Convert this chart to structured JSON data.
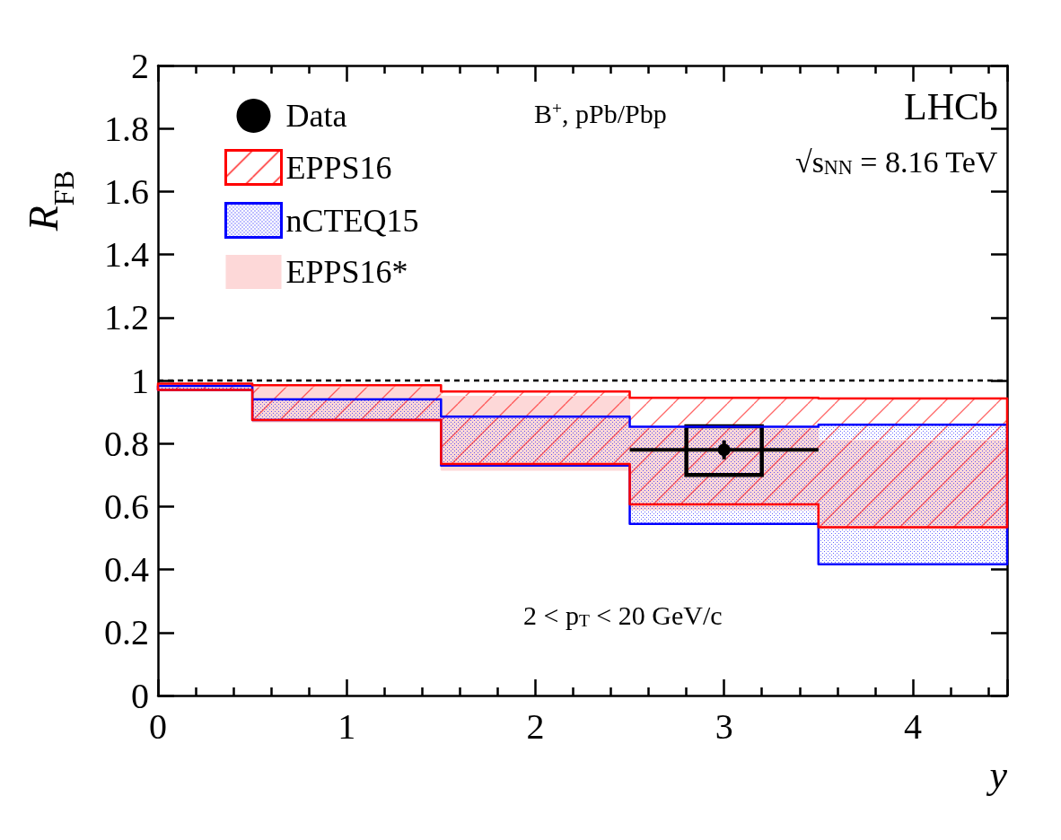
{
  "chart_data": {
    "type": "area",
    "xlabel": "y",
    "ylabel": "R$_{FB}$",
    "xlim": [
      0,
      4.5
    ],
    "xticks": [
      0,
      1,
      2,
      3,
      4
    ],
    "ylim": [
      0,
      2
    ],
    "yticks": [
      0,
      0.2,
      0.4,
      0.6,
      0.8,
      1,
      1.2,
      1.4,
      1.6,
      1.8,
      2
    ],
    "legend": "top left",
    "ref_lines": [
      {
        "axis": "y",
        "value": 1,
        "line_style": "dashed",
        "color": "#000000"
      }
    ],
    "annotations": [
      "B$^{+}$, pPb/Pbp",
      "LHCb",
      "√s$_{NN}$ = 8.16 TeV",
      "2 < p$_{T}$ < 20 GeV/c"
    ],
    "series": [
      {
        "name": "Data",
        "type": "scatter",
        "color": "#000000",
        "marker": "circle",
        "x": [
          3
        ],
        "values": [
          0.78
        ],
        "errors": [
          0.03
        ],
        "xerrors": [
          0.5
        ]
      },
      {
        "name": "EPPS16",
        "color": "#ff0000",
        "x": [
          0,
          0.5,
          1.5,
          2.5,
          3.5,
          4.5
        ],
        "values": [
          null,
          null,
          null,
          null,
          null,
          null
        ],
        "lower": [
          0.97,
          0.875,
          0.735,
          0.607,
          0.534,
          0.534
        ],
        "upper": [
          0.99,
          0.985,
          0.965,
          0.945,
          0.943,
          0.943
        ]
      },
      {
        "name": "nCTEQ15",
        "color": "#0000ff",
        "x": [
          0,
          0.5,
          1.5,
          2.5,
          3.5,
          4.5
        ],
        "values": [
          null,
          null,
          null,
          null,
          null,
          null
        ],
        "lower": [
          0.97,
          0.875,
          0.73,
          0.545,
          0.417,
          0.417
        ],
        "upper": [
          0.983,
          0.94,
          0.885,
          0.853,
          0.86,
          0.86
        ]
      },
      {
        "name": "EPPS16*",
        "color": "#fdd8d8",
        "x": [
          0,
          0.5,
          1.5,
          2.5,
          3.5,
          4.5
        ],
        "values": [
          null,
          null,
          null,
          null,
          null,
          null
        ],
        "lower": [
          0.97,
          0.868,
          0.715,
          0.59,
          0.53,
          0.53
        ],
        "upper": [
          0.99,
          0.98,
          0.95,
          0.85,
          0.81,
          0.81
        ]
      },
      {
        "type": "bar",
        "color": "#000000",
        "x": [
          3
        ],
        "base": [
          0.7
        ],
        "values": [
          0.155
        ]
      }
    ]
  }
}
